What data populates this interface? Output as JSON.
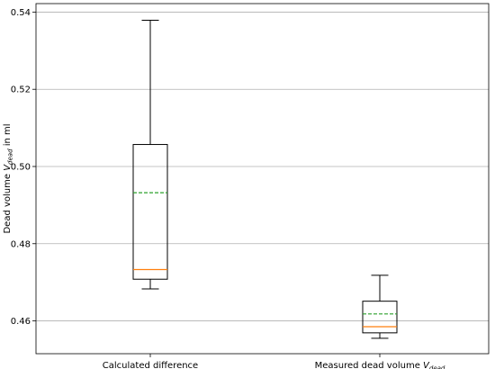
{
  "chart_data": {
    "type": "box",
    "title": "",
    "xlabel": "",
    "ylabel": {
      "main": "Dead volume ",
      "symbol": "V",
      "subscript": "dead",
      "unit": " in ml"
    },
    "ylim": [
      0.4515,
      0.5422
    ],
    "yticks": [
      "0.46",
      "0.48",
      "0.50",
      "0.52",
      "0.54"
    ],
    "grid": {
      "y": true,
      "x": false
    },
    "categories": [
      {
        "label": "Calculated difference"
      },
      {
        "label": "Measured dead volume ",
        "symbol": "V",
        "subscript": "dead"
      }
    ],
    "boxes": [
      {
        "whisker_low": 0.4683,
        "q1": 0.4708,
        "median": 0.4733,
        "mean": 0.4932,
        "q3": 0.5057,
        "whisker_high": 0.5379
      },
      {
        "whisker_low": 0.4555,
        "q1": 0.4569,
        "median": 0.4585,
        "mean": 0.4618,
        "q3": 0.4651,
        "whisker_high": 0.4718
      }
    ],
    "colors": {
      "box": "#000000",
      "median": "#ff7f0e",
      "mean": "#2ca02c",
      "grid": "#b0b0b0"
    }
  }
}
